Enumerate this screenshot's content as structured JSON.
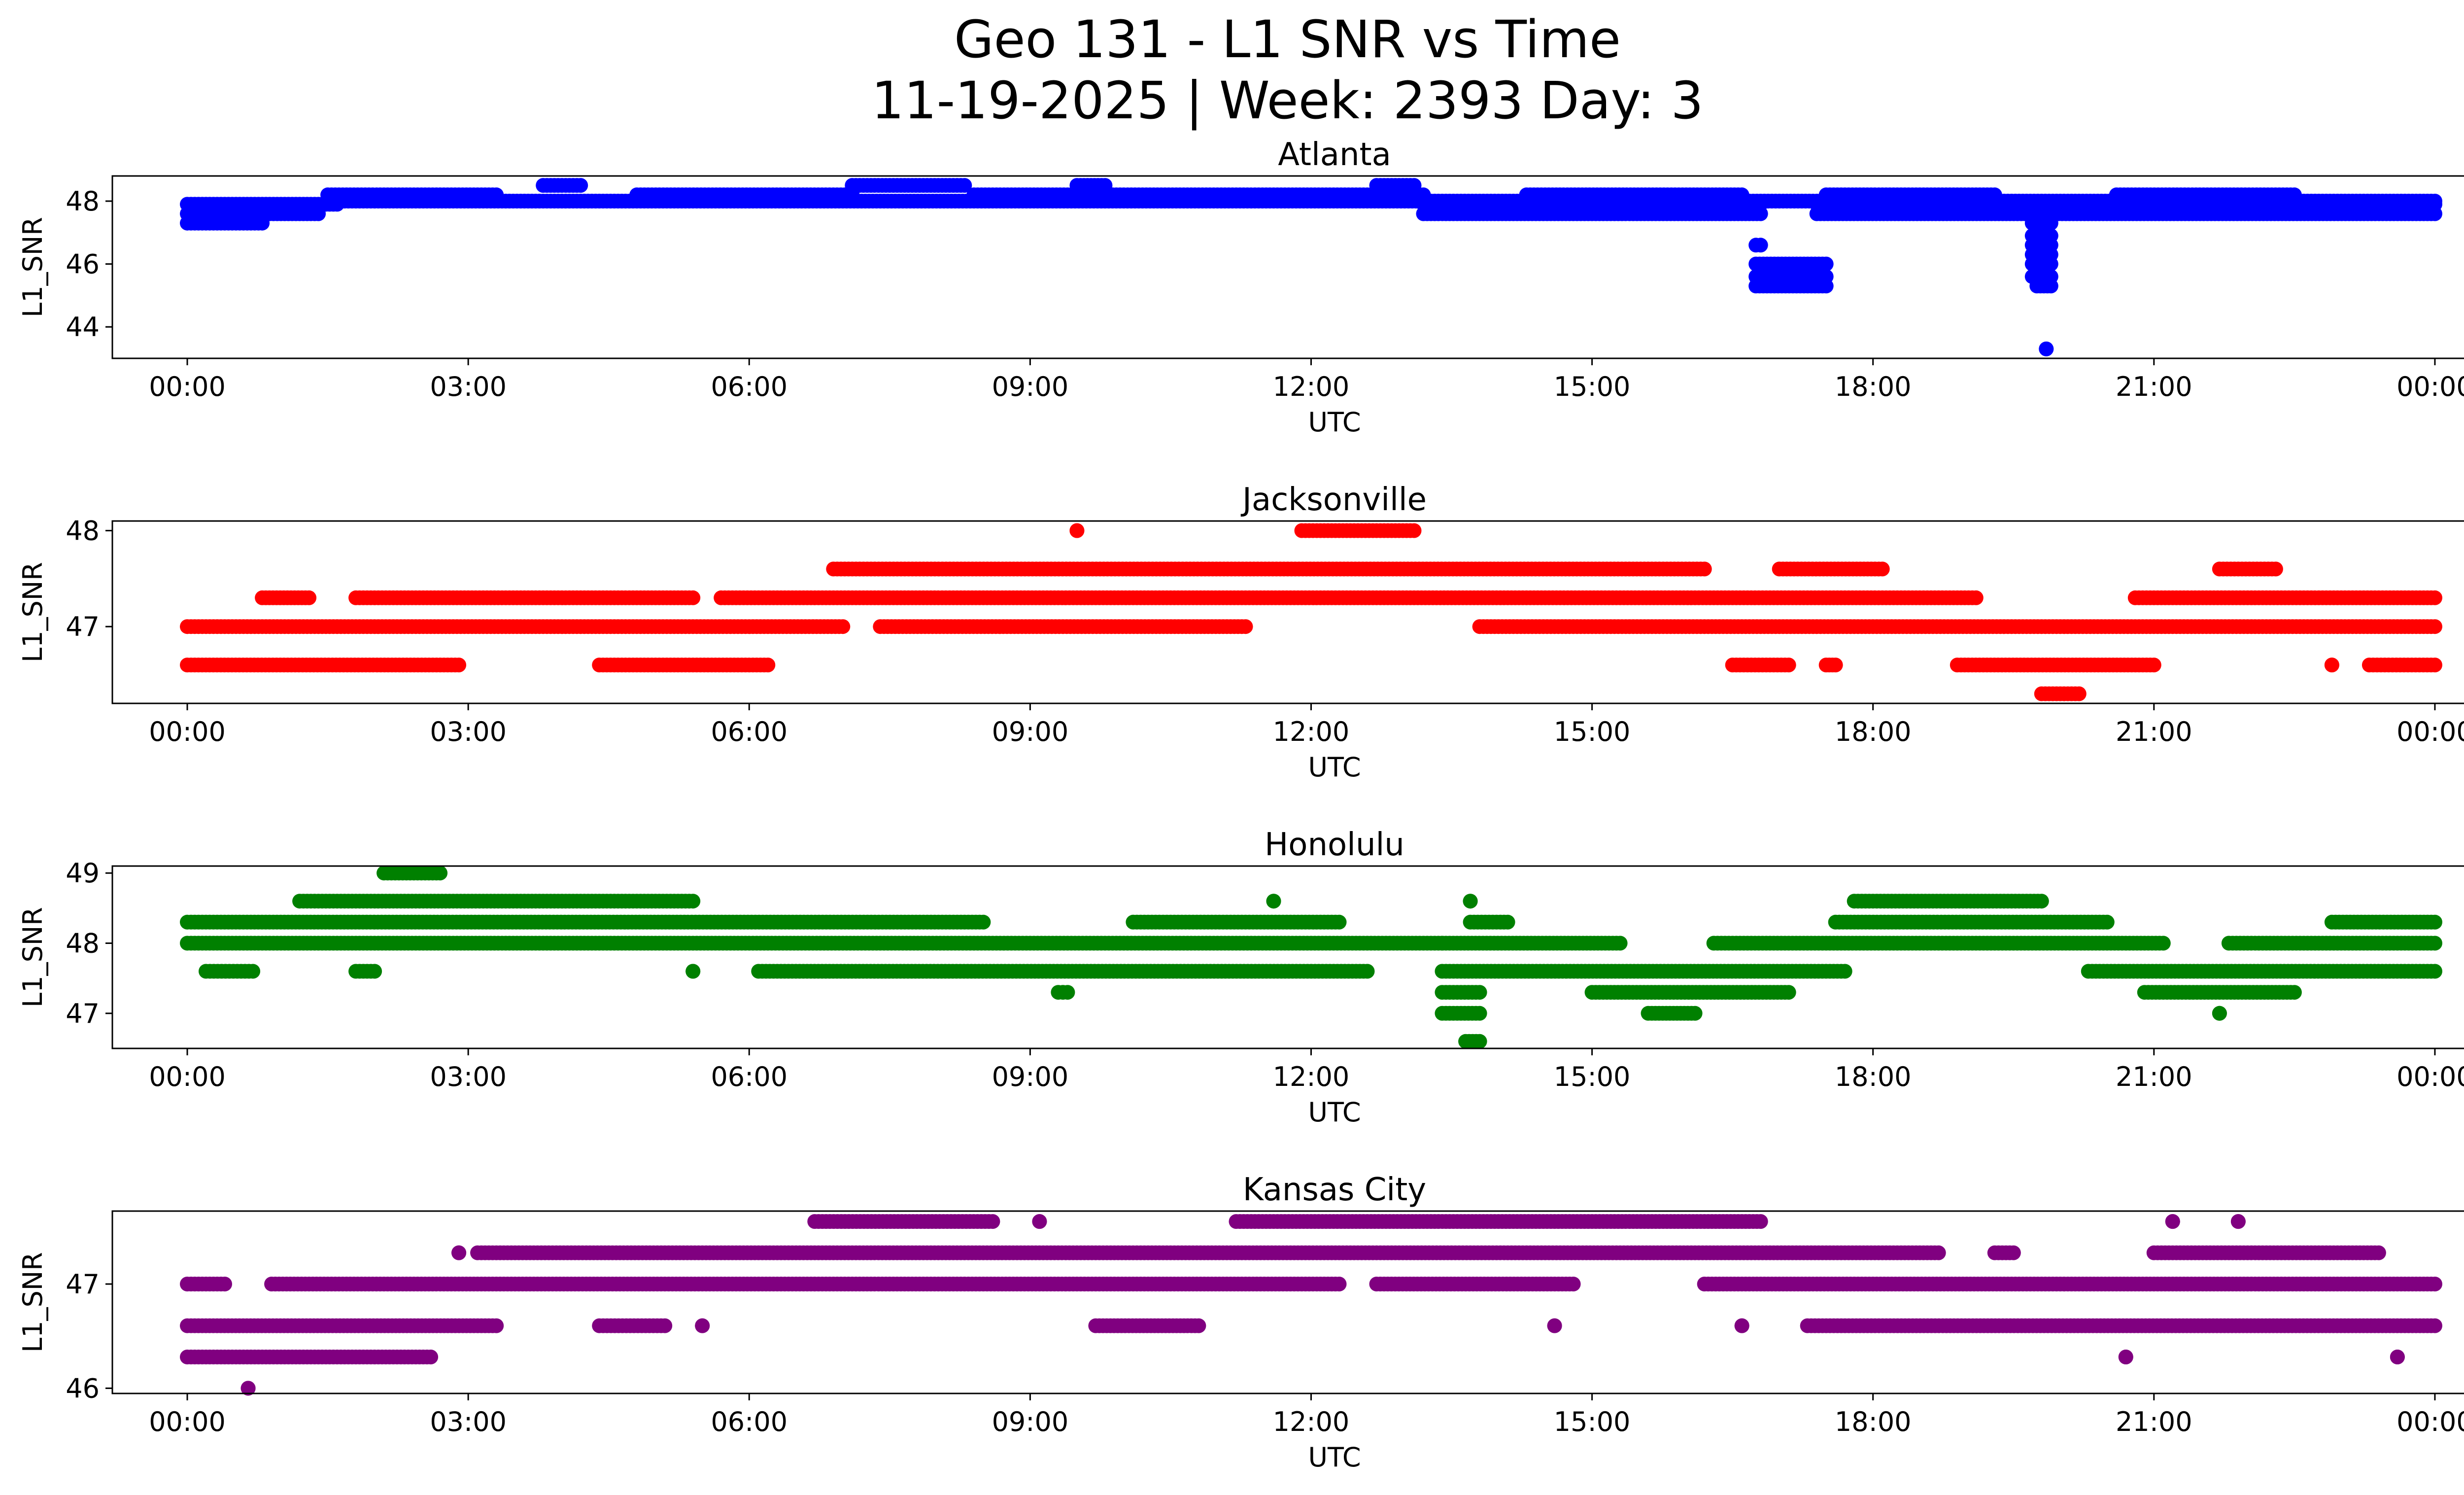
{
  "figure": {
    "title_line1": "Geo 131 - L1 SNR vs Time",
    "title_line2": "11-19-2025 | Week: 2393 Day: 3"
  },
  "chart_data": [
    {
      "type": "scatter",
      "title": "Atlanta",
      "xlabel": "UTC",
      "ylabel": "L1_SNR",
      "color": "#0000ff",
      "xlim_hours": [
        -0.8,
        25.3
      ],
      "ylim": [
        43,
        48.8
      ],
      "xticks": [
        "00:00",
        "03:00",
        "06:00",
        "09:00",
        "12:00",
        "15:00",
        "18:00",
        "21:00",
        "00:00"
      ],
      "yticks": [
        44,
        46,
        48
      ],
      "series": [
        {
          "name": "Atlanta",
          "ranges": [
            {
              "y": 47.3,
              "from": 0.0,
              "to": 0.8
            },
            {
              "y": 47.6,
              "from": 0.0,
              "to": 1.4
            },
            {
              "y": 47.9,
              "from": 0.0,
              "to": 1.6
            },
            {
              "y": 48.0,
              "from": 1.6,
              "to": 24.0
            },
            {
              "y": 48.2,
              "from": 1.5,
              "to": 3.3
            },
            {
              "y": 48.2,
              "from": 4.8,
              "to": 7.1
            },
            {
              "y": 48.2,
              "from": 8.4,
              "to": 13.2
            },
            {
              "y": 48.5,
              "from": 3.8,
              "to": 4.2
            },
            {
              "y": 48.5,
              "from": 7.1,
              "to": 8.3
            },
            {
              "y": 48.5,
              "from": 9.5,
              "to": 9.8
            },
            {
              "y": 48.5,
              "from": 12.7,
              "to": 13.1
            },
            {
              "y": 47.6,
              "from": 13.2,
              "to": 16.8
            },
            {
              "y": 47.9,
              "from": 13.2,
              "to": 16.8
            },
            {
              "y": 48.2,
              "from": 14.3,
              "to": 16.6
            },
            {
              "y": 46.6,
              "from": 16.75,
              "to": 16.8
            },
            {
              "y": 46.0,
              "from": 16.75,
              "to": 17.5
            },
            {
              "y": 45.6,
              "from": 16.75,
              "to": 17.5
            },
            {
              "y": 45.3,
              "from": 16.75,
              "to": 17.5
            },
            {
              "y": 47.6,
              "from": 17.4,
              "to": 19.9
            },
            {
              "y": 47.9,
              "from": 17.4,
              "to": 19.9
            },
            {
              "y": 48.2,
              "from": 17.5,
              "to": 19.3
            },
            {
              "y": 47.3,
              "from": 19.7,
              "to": 19.9
            },
            {
              "y": 46.9,
              "from": 19.7,
              "to": 19.9
            },
            {
              "y": 46.6,
              "from": 19.7,
              "to": 19.9
            },
            {
              "y": 46.3,
              "from": 19.7,
              "to": 19.9
            },
            {
              "y": 46.0,
              "from": 19.7,
              "to": 19.9
            },
            {
              "y": 45.6,
              "from": 19.7,
              "to": 19.9
            },
            {
              "y": 45.3,
              "from": 19.75,
              "to": 19.9
            },
            {
              "y": 43.3,
              "from": 19.85,
              "to": 19.85
            },
            {
              "y": 47.6,
              "from": 19.9,
              "to": 24.0
            },
            {
              "y": 47.9,
              "from": 19.9,
              "to": 24.0
            },
            {
              "y": 48.2,
              "from": 20.6,
              "to": 22.5
            }
          ]
        }
      ]
    },
    {
      "type": "scatter",
      "title": "Jacksonville",
      "xlabel": "UTC",
      "ylabel": "L1_SNR",
      "color": "#ff0000",
      "xlim_hours": [
        -0.8,
        25.3
      ],
      "ylim": [
        46.2,
        48.1
      ],
      "xticks": [
        "00:00",
        "03:00",
        "06:00",
        "09:00",
        "12:00",
        "15:00",
        "18:00",
        "21:00",
        "00:00"
      ],
      "yticks": [
        47,
        48
      ],
      "series": [
        {
          "name": "Jacksonville",
          "ranges": [
            {
              "y": 46.6,
              "from": 0.0,
              "to": 2.9
            },
            {
              "y": 46.6,
              "from": 4.4,
              "to": 6.2
            },
            {
              "y": 47.0,
              "from": 0.0,
              "to": 7.0
            },
            {
              "y": 47.0,
              "from": 7.4,
              "to": 11.3
            },
            {
              "y": 47.3,
              "from": 0.8,
              "to": 1.3
            },
            {
              "y": 47.3,
              "from": 1.8,
              "to": 5.4
            },
            {
              "y": 47.3,
              "from": 5.7,
              "to": 19.1
            },
            {
              "y": 47.6,
              "from": 6.9,
              "to": 16.2
            },
            {
              "y": 48.0,
              "from": 9.5,
              "to": 9.5
            },
            {
              "y": 48.0,
              "from": 11.9,
              "to": 13.1
            },
            {
              "y": 47.0,
              "from": 13.8,
              "to": 24.0
            },
            {
              "y": 46.6,
              "from": 16.5,
              "to": 17.1
            },
            {
              "y": 46.6,
              "from": 17.5,
              "to": 17.6
            },
            {
              "y": 47.6,
              "from": 17.0,
              "to": 18.1
            },
            {
              "y": 46.6,
              "from": 18.9,
              "to": 21.0
            },
            {
              "y": 46.3,
              "from": 19.8,
              "to": 20.2
            },
            {
              "y": 47.3,
              "from": 20.8,
              "to": 24.0
            },
            {
              "y": 47.6,
              "from": 21.7,
              "to": 22.3
            },
            {
              "y": 46.6,
              "from": 22.9,
              "to": 22.9
            },
            {
              "y": 46.6,
              "from": 23.3,
              "to": 24.0
            }
          ]
        }
      ]
    },
    {
      "type": "scatter",
      "title": "Honolulu",
      "xlabel": "UTC",
      "ylabel": "L1_SNR",
      "color": "#008000",
      "xlim_hours": [
        -0.8,
        25.3
      ],
      "ylim": [
        46.5,
        49.1
      ],
      "xticks": [
        "00:00",
        "03:00",
        "06:00",
        "09:00",
        "12:00",
        "15:00",
        "18:00",
        "21:00",
        "00:00"
      ],
      "yticks": [
        47,
        48,
        49
      ],
      "series": [
        {
          "name": "Honolulu",
          "ranges": [
            {
              "y": 48.0,
              "from": 0.0,
              "to": 13.4
            },
            {
              "y": 48.3,
              "from": 0.0,
              "to": 8.5
            },
            {
              "y": 48.6,
              "from": 1.2,
              "to": 5.4
            },
            {
              "y": 47.6,
              "from": 0.2,
              "to": 0.7
            },
            {
              "y": 47.6,
              "from": 1.8,
              "to": 2.0
            },
            {
              "y": 47.6,
              "from": 5.4,
              "to": 5.4
            },
            {
              "y": 49.0,
              "from": 2.1,
              "to": 2.7
            },
            {
              "y": 47.6,
              "from": 6.1,
              "to": 12.6
            },
            {
              "y": 47.3,
              "from": 9.3,
              "to": 9.4
            },
            {
              "y": 48.3,
              "from": 10.1,
              "to": 12.3
            },
            {
              "y": 48.6,
              "from": 11.6,
              "to": 11.6
            },
            {
              "y": 47.6,
              "from": 13.4,
              "to": 17.7
            },
            {
              "y": 47.3,
              "from": 13.4,
              "to": 13.8
            },
            {
              "y": 47.0,
              "from": 13.4,
              "to": 13.8
            },
            {
              "y": 46.6,
              "from": 13.65,
              "to": 13.8
            },
            {
              "y": 48.6,
              "from": 13.7,
              "to": 13.7
            },
            {
              "y": 48.3,
              "from": 13.7,
              "to": 14.1
            },
            {
              "y": 48.0,
              "from": 13.4,
              "to": 15.3
            },
            {
              "y": 47.3,
              "from": 15.0,
              "to": 17.1
            },
            {
              "y": 47.0,
              "from": 15.6,
              "to": 16.1
            },
            {
              "y": 48.0,
              "from": 16.3,
              "to": 21.1
            },
            {
              "y": 48.3,
              "from": 17.6,
              "to": 20.5
            },
            {
              "y": 48.6,
              "from": 17.8,
              "to": 19.8
            },
            {
              "y": 47.6,
              "from": 20.3,
              "to": 24.0
            },
            {
              "y": 47.3,
              "from": 20.9,
              "to": 22.5
            },
            {
              "y": 47.0,
              "from": 21.7,
              "to": 21.7
            },
            {
              "y": 48.0,
              "from": 21.8,
              "to": 24.0
            },
            {
              "y": 48.3,
              "from": 22.9,
              "to": 24.0
            }
          ]
        }
      ]
    },
    {
      "type": "scatter",
      "title": "Kansas City",
      "xlabel": "UTC",
      "ylabel": "L1_SNR",
      "color": "#800080",
      "xlim_hours": [
        -0.8,
        25.3
      ],
      "ylim": [
        45.95,
        47.7
      ],
      "xticks": [
        "00:00",
        "03:00",
        "06:00",
        "09:00",
        "12:00",
        "15:00",
        "18:00",
        "21:00",
        "00:00"
      ],
      "yticks": [
        46,
        47
      ],
      "series": [
        {
          "name": "Kansas City",
          "ranges": [
            {
              "y": 46.3,
              "from": 0.0,
              "to": 2.6
            },
            {
              "y": 46.6,
              "from": 0.0,
              "to": 3.3
            },
            {
              "y": 47.0,
              "from": 0.0,
              "to": 0.4
            },
            {
              "y": 47.0,
              "from": 0.9,
              "to": 12.3
            },
            {
              "y": 46.0,
              "from": 0.65,
              "to": 0.65
            },
            {
              "y": 47.3,
              "from": 2.9,
              "to": 2.9
            },
            {
              "y": 47.3,
              "from": 3.1,
              "to": 18.7
            },
            {
              "y": 46.6,
              "from": 4.4,
              "to": 5.1
            },
            {
              "y": 46.6,
              "from": 5.5,
              "to": 5.5
            },
            {
              "y": 47.6,
              "from": 6.7,
              "to": 8.6
            },
            {
              "y": 47.6,
              "from": 9.1,
              "to": 9.1
            },
            {
              "y": 46.6,
              "from": 9.7,
              "to": 10.8
            },
            {
              "y": 47.0,
              "from": 12.7,
              "to": 14.8
            },
            {
              "y": 47.6,
              "from": 11.2,
              "to": 16.8
            },
            {
              "y": 46.6,
              "from": 14.6,
              "to": 14.6
            },
            {
              "y": 46.6,
              "from": 16.6,
              "to": 16.6
            },
            {
              "y": 47.0,
              "from": 16.2,
              "to": 24.0
            },
            {
              "y": 46.6,
              "from": 17.3,
              "to": 24.0
            },
            {
              "y": 47.3,
              "from": 19.3,
              "to": 19.5
            },
            {
              "y": 47.3,
              "from": 21.0,
              "to": 23.4
            },
            {
              "y": 47.6,
              "from": 21.2,
              "to": 21.2
            },
            {
              "y": 47.6,
              "from": 21.9,
              "to": 21.9
            },
            {
              "y": 46.3,
              "from": 20.7,
              "to": 20.7
            },
            {
              "y": 46.3,
              "from": 23.6,
              "to": 23.6
            }
          ]
        }
      ]
    }
  ]
}
